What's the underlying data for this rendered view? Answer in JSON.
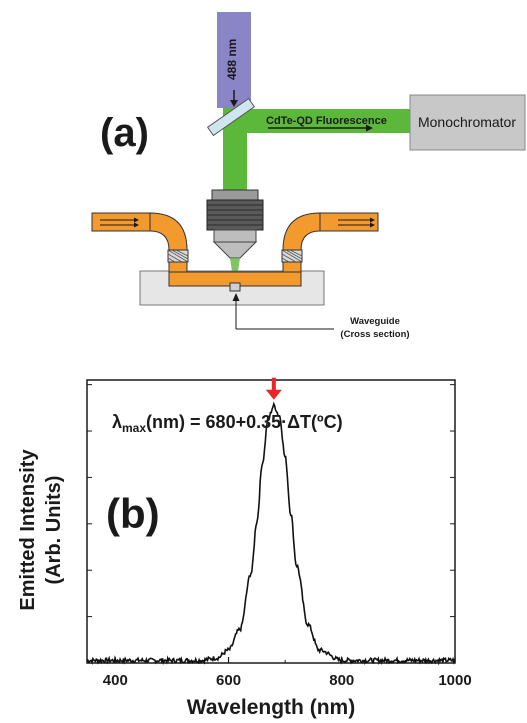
{
  "panel_a": {
    "label": "(a)",
    "laser_label": "488 nm",
    "fluorescence_label": "CdTe-QD Fluorescence",
    "monochromator_label": "Monochromator",
    "waveguide_label_line1": "Waveguide",
    "waveguide_label_line2": "(Cross section)"
  },
  "panel_b": {
    "label": "(b)",
    "equation_lambda": "λ",
    "equation_sub": "max",
    "equation_rest": "(nm) = 680+0.35·ΔT(ºC)"
  },
  "colors": {
    "laser": "#8a85c6",
    "fluorescence": "#5cb83a",
    "fiber": "#f29a2e",
    "monochromator": "#c8c8c8",
    "marker_arrow": "#e8262a"
  },
  "chart_data": {
    "type": "line",
    "title": "",
    "xlabel": "Wavelength (nm)",
    "ylabel_line1": "Emitted Intensity",
    "ylabel_line2": "(Arb. Units)",
    "xlim": [
      350,
      1000
    ],
    "ylim": [
      0,
      1.1
    ],
    "x_ticks": [
      400,
      600,
      800,
      1000
    ],
    "x_tick_labels": [
      "400",
      "600",
      "800",
      "1000"
    ],
    "y_tick_labels": [],
    "grid": false,
    "peak_marker_x": 680,
    "series": [
      {
        "x": [
          350,
          400,
          450,
          500,
          550,
          580,
          600,
          620,
          640,
          650,
          660,
          670,
          680,
          690,
          700,
          710,
          720,
          740,
          760,
          800,
          850,
          900,
          950,
          1000
        ],
        "y": [
          0.01,
          0.01,
          0.01,
          0.01,
          0.01,
          0.02,
          0.05,
          0.13,
          0.35,
          0.55,
          0.78,
          0.95,
          1.0,
          0.96,
          0.8,
          0.58,
          0.38,
          0.15,
          0.05,
          0.01,
          0.01,
          0.01,
          0.01,
          0.01
        ]
      }
    ]
  }
}
